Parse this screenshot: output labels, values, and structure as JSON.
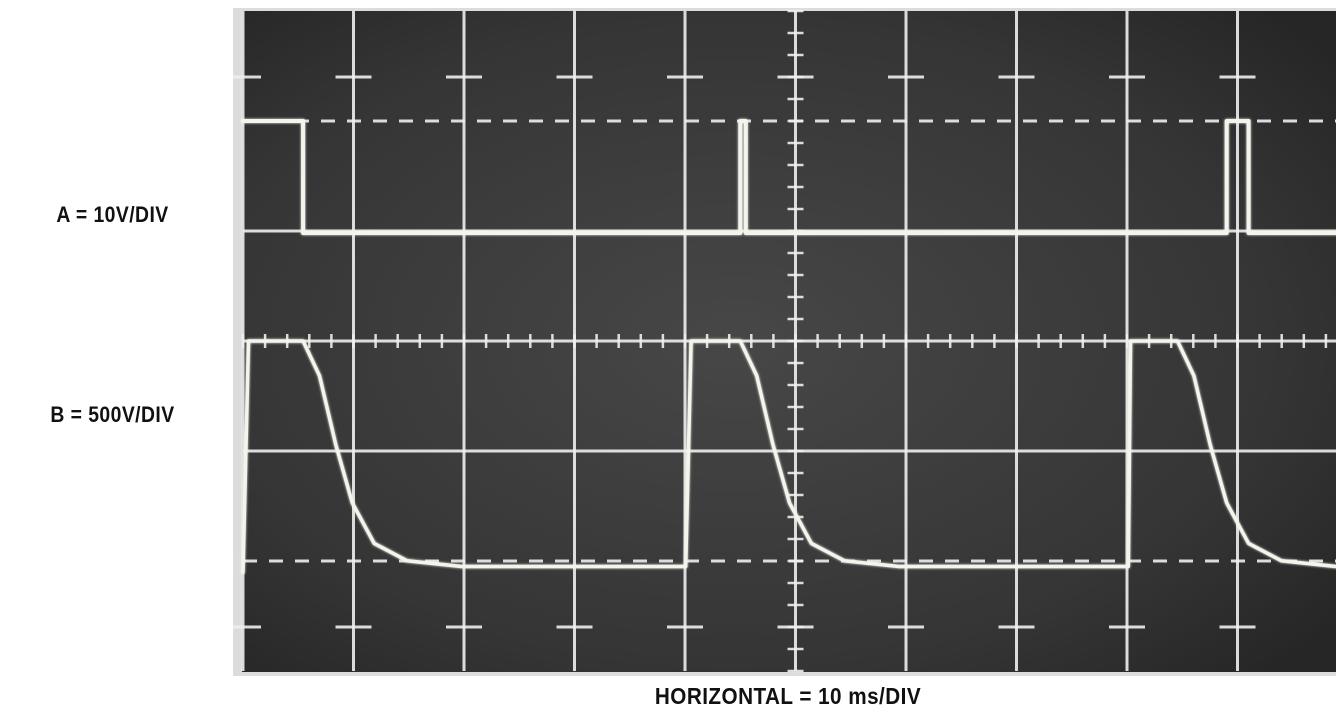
{
  "labels": {
    "channel_a": "A = 10V/DIV",
    "channel_b": "B = 500V/DIV",
    "horizontal": "HORIZONTAL = 10 ms/DIV"
  },
  "colors": {
    "screen": "#3a3a3a",
    "bezel": "#dcdcdc",
    "graticule": "#eeeeee",
    "trace": "#f4f4ec",
    "text": "#111111"
  },
  "chart_data": {
    "type": "line",
    "title": "",
    "xlabel": "HORIZONTAL = 10 ms/DIV",
    "ylabel": "",
    "x_unit": "ms",
    "xlim": [
      0,
      100
    ],
    "y_divisions": 8,
    "grid": true,
    "legend": "none",
    "series": [
      {
        "label": "A = 10V/DIV",
        "unit": "V",
        "y_divisions_range": [
          -40,
          40
        ],
        "points": [
          [
            0,
            30
          ],
          [
            5.5,
            30
          ],
          [
            5.5,
            20
          ],
          [
            45.5,
            20
          ],
          [
            45.5,
            30
          ],
          [
            46,
            30
          ],
          [
            46,
            20
          ],
          [
            90,
            20
          ],
          [
            90,
            30
          ],
          [
            92,
            30
          ],
          [
            92,
            20
          ],
          [
            100,
            20
          ]
        ]
      },
      {
        "label": "B = 500V/DIV",
        "unit": "V",
        "y_divisions_range": [
          -2000,
          2000
        ],
        "points": [
          [
            0,
            -2000
          ],
          [
            0.5,
            0
          ],
          [
            1.2,
            0
          ],
          [
            5.5,
            0
          ],
          [
            7,
            -300
          ],
          [
            8.5,
            -900
          ],
          [
            10,
            -1400
          ],
          [
            12,
            -1750
          ],
          [
            15,
            -1900
          ],
          [
            20,
            -1950
          ],
          [
            30,
            -1950
          ],
          [
            40,
            -1950
          ],
          [
            40.5,
            -1950
          ],
          [
            41,
            0
          ],
          [
            45.5,
            0
          ],
          [
            47,
            -300
          ],
          [
            48.5,
            -900
          ],
          [
            50,
            -1400
          ],
          [
            52,
            -1750
          ],
          [
            55,
            -1900
          ],
          [
            60,
            -1950
          ],
          [
            70,
            -1950
          ],
          [
            81,
            -1950
          ],
          [
            81.2,
            0
          ],
          [
            85.5,
            0
          ],
          [
            87,
            -300
          ],
          [
            88.5,
            -900
          ],
          [
            90,
            -1400
          ],
          [
            92,
            -1750
          ],
          [
            95,
            -1900
          ],
          [
            100,
            -1950
          ]
        ]
      }
    ]
  }
}
